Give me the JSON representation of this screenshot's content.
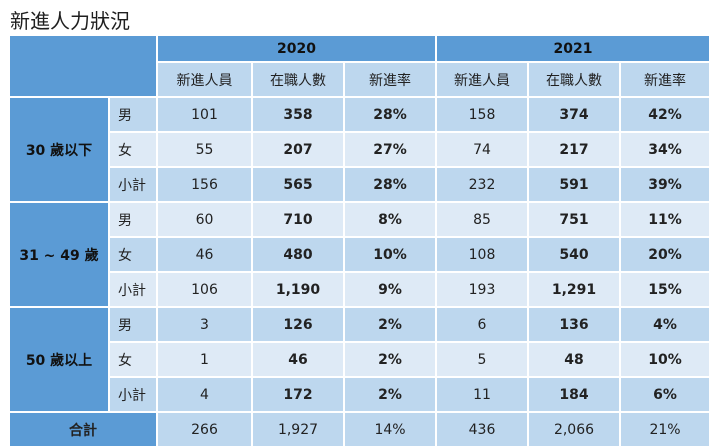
{
  "title": "新進人力狀況",
  "years": [
    "2020",
    "2021"
  ],
  "columns": [
    "新進人員",
    "在職人數",
    "新進率"
  ],
  "groups": [
    {
      "label": "30 歲以下",
      "rows": [
        {
          "sub": "男",
          "v": [
            "101",
            "358",
            "28%",
            "158",
            "374",
            "42%"
          ]
        },
        {
          "sub": "女",
          "v": [
            "55",
            "207",
            "27%",
            "74",
            "217",
            "34%"
          ]
        },
        {
          "sub": "小計",
          "v": [
            "156",
            "565",
            "28%",
            "232",
            "591",
            "39%"
          ]
        }
      ]
    },
    {
      "label": "31 ~ 49 歲",
      "rows": [
        {
          "sub": "男",
          "v": [
            "60",
            "710",
            "8%",
            "85",
            "751",
            "11%"
          ]
        },
        {
          "sub": "女",
          "v": [
            "46",
            "480",
            "10%",
            "108",
            "540",
            "20%"
          ]
        },
        {
          "sub": "小計",
          "v": [
            "106",
            "1,190",
            "9%",
            "193",
            "1,291",
            "15%"
          ]
        }
      ]
    },
    {
      "label": "50 歲以上",
      "rows": [
        {
          "sub": "男",
          "v": [
            "3",
            "126",
            "2%",
            "6",
            "136",
            "4%"
          ]
        },
        {
          "sub": "女",
          "v": [
            "1",
            "46",
            "2%",
            "5",
            "48",
            "10%"
          ]
        },
        {
          "sub": "小計",
          "v": [
            "4",
            "172",
            "2%",
            "11",
            "184",
            "6%"
          ]
        }
      ]
    }
  ],
  "total": {
    "label": "合計",
    "v": [
      "266",
      "1,927",
      "14%",
      "436",
      "2,066",
      "21%"
    ]
  }
}
